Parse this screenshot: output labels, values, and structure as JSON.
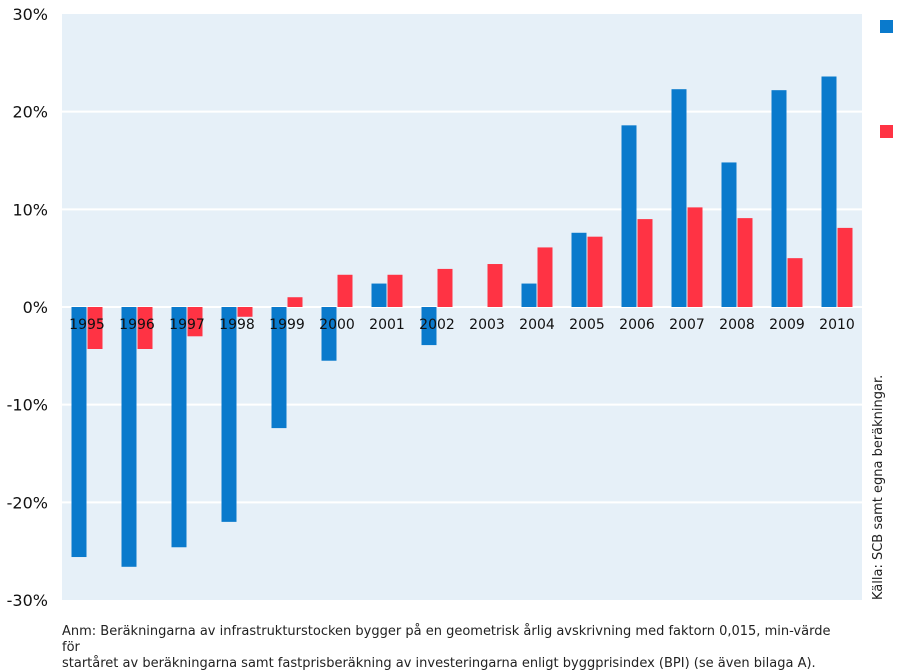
{
  "colors": {
    "plot_bg": "#e6f0f8",
    "gridline": "#ffffff",
    "series_blue": "#0a7acc",
    "series_red": "#ff3344",
    "text": "#111111"
  },
  "chart_data": {
    "type": "bar",
    "title": "",
    "xlabel": "",
    "ylabel": "",
    "ylim": [
      -30,
      30
    ],
    "yticks": [
      30,
      20,
      10,
      0,
      -10,
      -20,
      -30
    ],
    "ytick_labels": [
      "30%",
      "20%",
      "10%",
      "0%",
      "-10%",
      "-20%",
      "-30%"
    ],
    "categories": [
      "1995",
      "1996",
      "1997",
      "1998",
      "1999",
      "2000",
      "2001",
      "2002",
      "2003",
      "2004",
      "2005",
      "2006",
      "2007",
      "2008",
      "2009",
      "2010"
    ],
    "series": [
      {
        "name": "",
        "color": "#0a7acc",
        "values": [
          -25.6,
          -26.6,
          -24.6,
          -22.0,
          -12.4,
          -5.5,
          2.4,
          -3.9,
          0,
          2.4,
          7.6,
          18.6,
          22.3,
          14.8,
          22.2,
          23.6
        ]
      },
      {
        "name": "",
        "color": "#ff3344",
        "values": [
          -4.3,
          -4.3,
          -3.0,
          -1.0,
          1.0,
          3.3,
          3.3,
          3.9,
          4.4,
          6.1,
          7.2,
          9.0,
          10.2,
          9.1,
          5.0,
          8.1
        ]
      }
    ],
    "legend": {
      "placement": "right",
      "entries": [
        "",
        ""
      ]
    },
    "annotation_note": [
      "Anm: Beräkningarna av infrastrukturstocken bygger på en geometrisk årlig avskrivning med faktorn 0,015, min-värde för",
      "startåret av beräkningarna samt fastprisberäkning av investeringarna enligt byggprisindex (BPI) (se även bilaga A)."
    ],
    "source": "Källa: SCB samt egna beräkningar."
  }
}
